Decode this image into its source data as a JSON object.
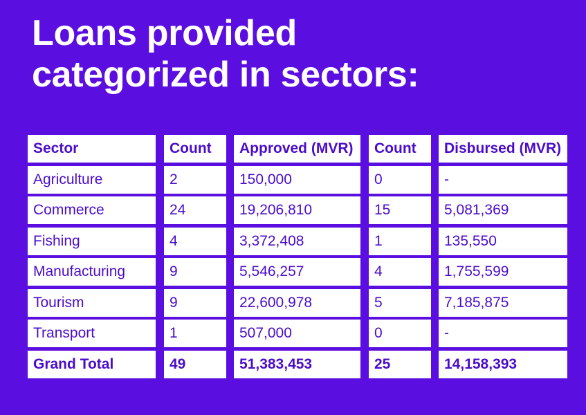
{
  "title": {
    "line1": "Loans provided",
    "line2": "categorized in sectors:"
  },
  "colors": {
    "background": "#5a0ee0",
    "cell_background": "#ffffff",
    "cell_text": "#4a0cc9",
    "title_text": "#ffffff"
  },
  "table": {
    "headers": [
      "Sector",
      "Count",
      "Approved (MVR)",
      "Count",
      "Disbursed (MVR)"
    ],
    "rows": [
      [
        "Agriculture",
        "2",
        "150,000",
        "0",
        "-"
      ],
      [
        "Commerce",
        "24",
        "19,206,810",
        "15",
        "5,081,369"
      ],
      [
        "Fishing",
        "4",
        "3,372,408",
        "1",
        "135,550"
      ],
      [
        "Manufacturing",
        "9",
        "5,546,257",
        "4",
        "1,755,599"
      ],
      [
        "Tourism",
        "9",
        "22,600,978",
        "5",
        "7,185,875"
      ],
      [
        "Transport",
        "1",
        "507,000",
        "0",
        "-"
      ]
    ],
    "total": [
      "Grand Total",
      "49",
      "51,383,453",
      "25",
      "14,158,393"
    ]
  }
}
